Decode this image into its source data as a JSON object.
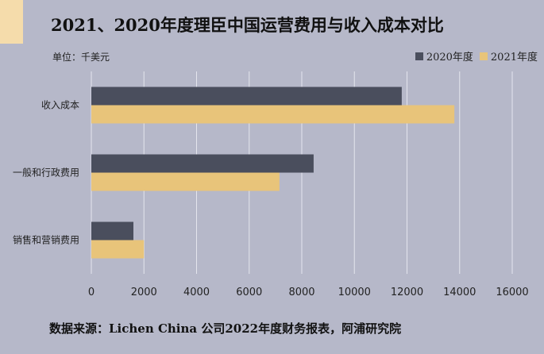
{
  "title": "2021、2020年度理臣中国运营费用与收入成本对比",
  "unit_label": "单位：千美元",
  "source": "数据来源：Lichen China 公司2022年度财务报表，阿浦研究院",
  "colors": {
    "background": "#b6b8c9",
    "accent": "#f5dcab",
    "series_2020": "#4a4e5d",
    "series_2021": "#e8c47a",
    "grid": "#e4e5ee"
  },
  "chart_data": {
    "type": "bar",
    "orientation": "horizontal",
    "categories": [
      "收入成本",
      "一般和行政费用",
      "销售和营销费用"
    ],
    "series": [
      {
        "name": "2020年度",
        "values": [
          11800,
          8450,
          1600
        ]
      },
      {
        "name": "2021年度",
        "values": [
          13800,
          7150,
          2000
        ]
      }
    ],
    "xlim": [
      0,
      16000
    ],
    "xticks": [
      "0",
      "2000",
      "4000",
      "6000",
      "8000",
      "10000",
      "12000",
      "14000",
      "16000"
    ],
    "grid": true,
    "legend_position": "top-right"
  }
}
